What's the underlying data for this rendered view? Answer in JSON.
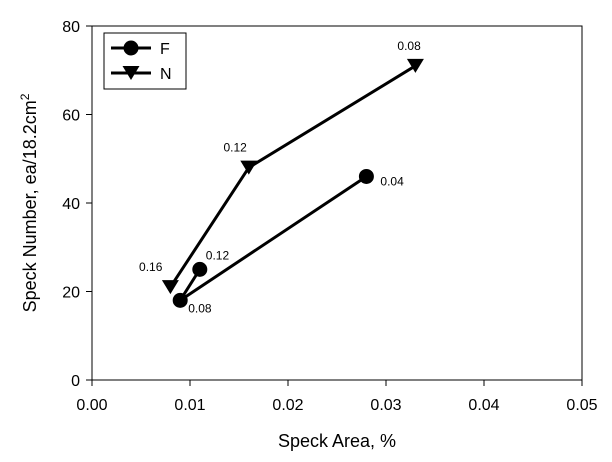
{
  "chart_data": {
    "type": "line",
    "title": "",
    "xlabel": "Speck Area, %",
    "ylabel": "Speck Number, ea/18.2cm",
    "ylabel_superscript": "2",
    "xlim": [
      0,
      0.05
    ],
    "ylim": [
      0,
      80
    ],
    "x_ticks": [
      "0.00",
      "0.01",
      "0.02",
      "0.03",
      "0.04",
      "0.05"
    ],
    "y_ticks": [
      "0",
      "20",
      "40",
      "60",
      "80"
    ],
    "x_tick_values": [
      0,
      0.01,
      0.02,
      0.03,
      0.04,
      0.05
    ],
    "y_tick_values": [
      0,
      20,
      40,
      60,
      80
    ],
    "grid": false,
    "legend_position": "top-left",
    "series": [
      {
        "name": "F",
        "marker": "circle",
        "color": "#000000",
        "points": [
          {
            "x": 0.011,
            "y": 25,
            "label": "0.12"
          },
          {
            "x": 0.009,
            "y": 18,
            "label": "0.08"
          },
          {
            "x": 0.028,
            "y": 46,
            "label": "0.04"
          }
        ]
      },
      {
        "name": "N",
        "marker": "triangle-down",
        "color": "#000000",
        "points": [
          {
            "x": 0.008,
            "y": 21,
            "label": "0.16"
          },
          {
            "x": 0.016,
            "y": 48,
            "label": "0.12"
          },
          {
            "x": 0.033,
            "y": 71,
            "label": "0.08"
          }
        ]
      }
    ]
  }
}
